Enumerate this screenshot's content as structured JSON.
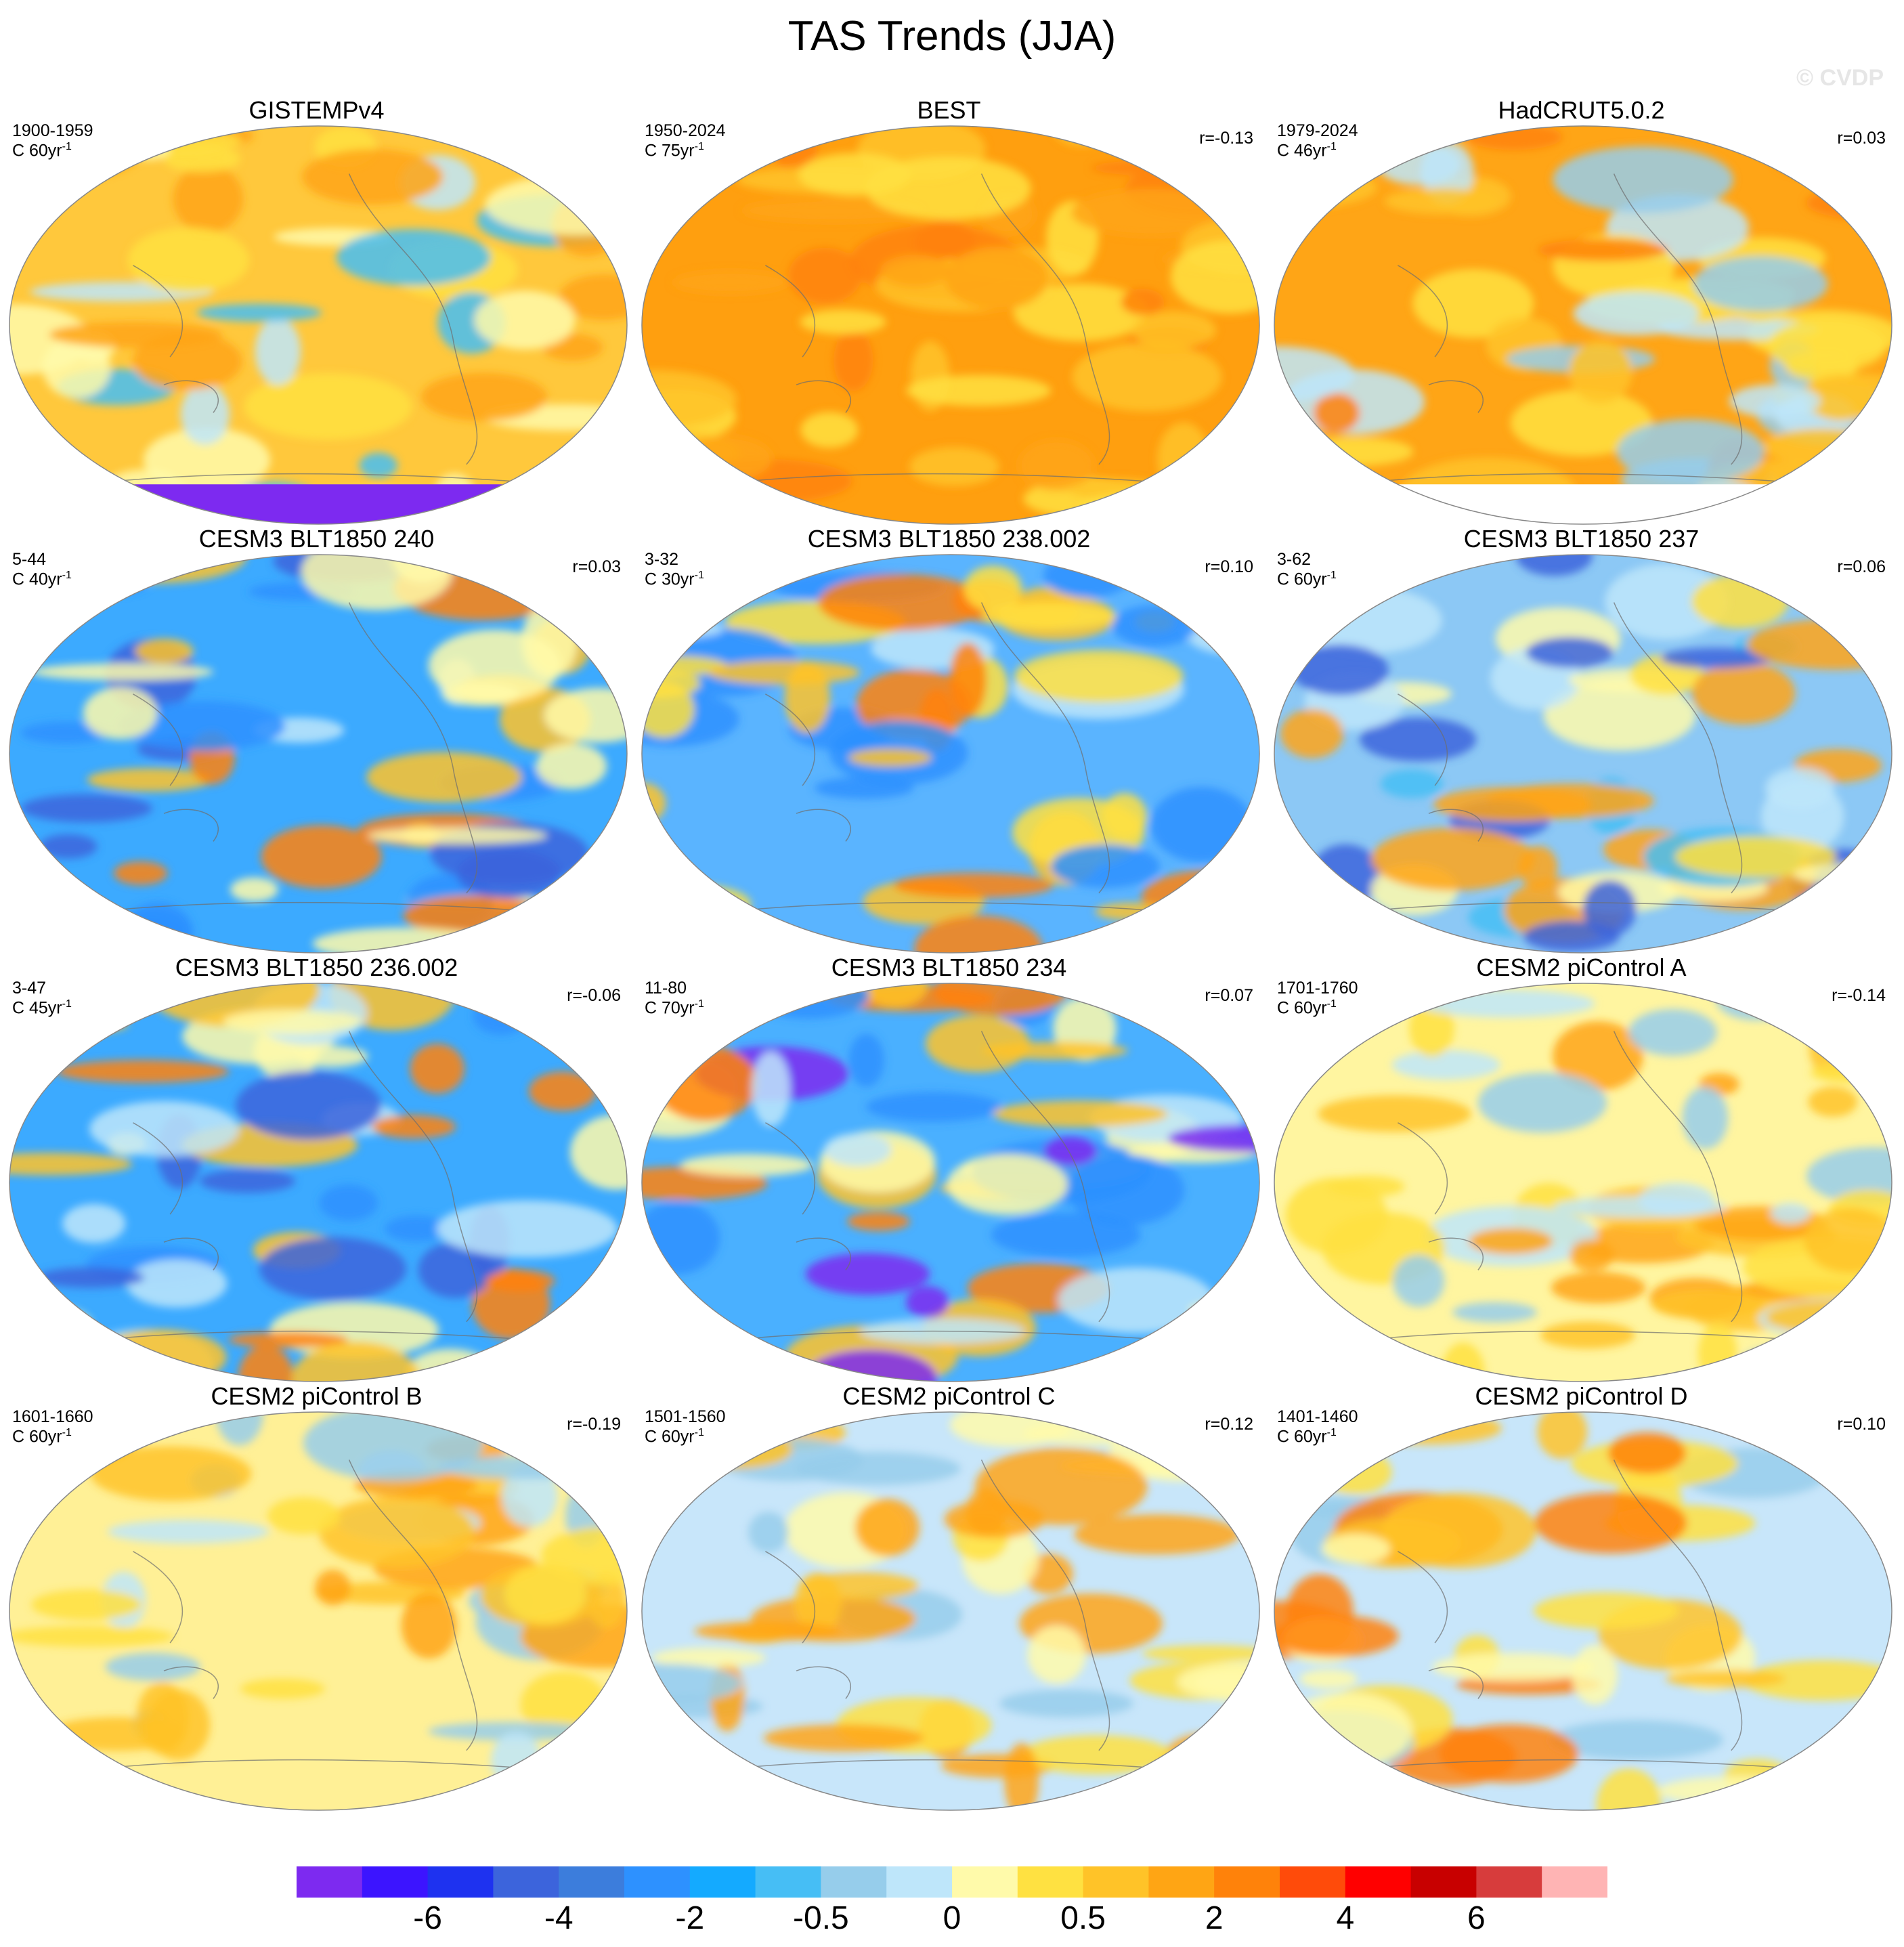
{
  "title": "TAS Trends (JJA)",
  "credit": "© CVDP",
  "panels": [
    {
      "title": "GISTEMPv4",
      "period": "1900-1959",
      "units": "C 60yr",
      "units_exp": "-1",
      "r": "",
      "base": "#ffc83c",
      "missing": true
    },
    {
      "title": "BEST",
      "period": "1950-2024",
      "units": "C 75yr",
      "units_exp": "-1",
      "r": "r=-0.13",
      "base": "#ff9f0f",
      "missing": false
    },
    {
      "title": "HadCRUT5.0.2",
      "period": "1979-2024",
      "units": "C 46yr",
      "units_exp": "-1",
      "r": "r=0.03",
      "base": "#ffa516",
      "missing": true
    },
    {
      "title": "CESM3 BLT1850 240",
      "period": "5-44",
      "units": "C 40yr",
      "units_exp": "-1",
      "r": "r=0.03",
      "base": "#3caaff",
      "missing": false
    },
    {
      "title": "CESM3 BLT1850 238.002",
      "period": "3-32",
      "units": "C 30yr",
      "units_exp": "-1",
      "r": "r=0.10",
      "base": "#5ab4ff",
      "missing": false
    },
    {
      "title": "CESM3 BLT1850 237",
      "period": "3-62",
      "units": "C 60yr",
      "units_exp": "-1",
      "r": "r=0.06",
      "base": "#8cc8f5",
      "missing": false
    },
    {
      "title": "CESM3 BLT1850 236.002",
      "period": "3-47",
      "units": "C 45yr",
      "units_exp": "-1",
      "r": "r=-0.06",
      "base": "#3caaff",
      "missing": false
    },
    {
      "title": "CESM3 BLT1850 234",
      "period": "11-80",
      "units": "C 70yr",
      "units_exp": "-1",
      "r": "r=0.07",
      "base": "#4ab0ff",
      "missing": false
    },
    {
      "title": "CESM2 piControl A",
      "period": "1701-1760",
      "units": "C 60yr",
      "units_exp": "-1",
      "r": "r=-0.14",
      "base": "#fff5a0",
      "missing": false
    },
    {
      "title": "CESM2 piControl B",
      "period": "1601-1660",
      "units": "C 60yr",
      "units_exp": "-1",
      "r": "r=-0.19",
      "base": "#fff096",
      "missing": false
    },
    {
      "title": "CESM2 piControl C",
      "period": "1501-1560",
      "units": "C 60yr",
      "units_exp": "-1",
      "r": "r=0.12",
      "base": "#c8e6fa",
      "missing": false
    },
    {
      "title": "CESM2 piControl D",
      "period": "1401-1460",
      "units": "C 60yr",
      "units_exp": "-1",
      "r": "r=0.10",
      "base": "#c8e6fa",
      "missing": false
    }
  ],
  "colorbar": {
    "colors": [
      "#7d2af0",
      "#3c14ff",
      "#1e32f0",
      "#3c64dc",
      "#3c7ddc",
      "#2d91ff",
      "#14aaff",
      "#46bef5",
      "#96cdeb",
      "#bee6fa",
      "#fffaaa",
      "#ffe141",
      "#ffc328",
      "#ffa514",
      "#ff820a",
      "#ff4b0a",
      "#ff0000",
      "#c80000",
      "#d73c3c",
      "#ffb4b4"
    ],
    "tick_labels": [
      "-6",
      "-4",
      "-2",
      "-0.5",
      "0",
      "0.5",
      "2",
      "4",
      "6"
    ]
  }
}
